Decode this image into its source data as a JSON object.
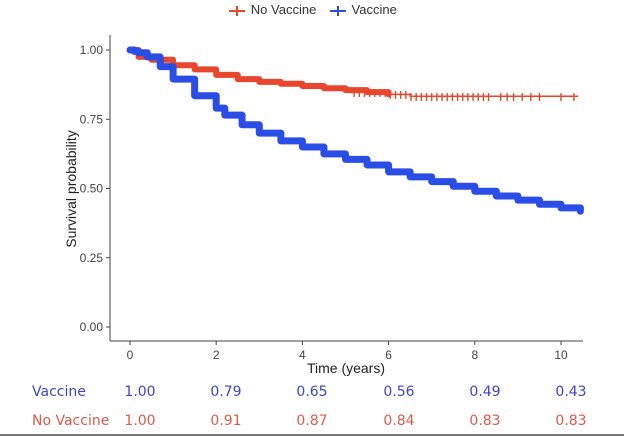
{
  "chart_data": {
    "type": "line",
    "title": "",
    "xlabel": "Time (years)",
    "ylabel": "Survival probability",
    "xlim": [
      -0.5,
      10.5
    ],
    "ylim": [
      -0.04,
      1.04
    ],
    "xticks": [
      0,
      2,
      4,
      6,
      8,
      10
    ],
    "yticks": [
      0.0,
      0.25,
      0.5,
      0.75,
      1.0
    ],
    "xtick_labels": [
      "0",
      "2",
      "4",
      "6",
      "8",
      "10"
    ],
    "ytick_labels": [
      "0.00",
      "0.25",
      "0.50",
      "0.75",
      "1.00"
    ],
    "grid": false,
    "legend": {
      "position": "top",
      "entries": [
        "No Vaccine",
        "Vaccine"
      ]
    },
    "series": [
      {
        "name": "No Vaccine",
        "color": "#e8462d",
        "x": [
          0,
          0.2,
          0.5,
          1.0,
          1.5,
          2.0,
          2.5,
          3.0,
          3.5,
          4.0,
          4.5,
          5.0,
          5.5,
          6.0,
          6.5,
          7.0,
          8.0,
          9.0,
          10.0,
          10.4
        ],
        "y": [
          1.0,
          0.975,
          0.965,
          0.945,
          0.93,
          0.91,
          0.895,
          0.885,
          0.878,
          0.87,
          0.862,
          0.855,
          0.848,
          0.84,
          0.833,
          0.83,
          0.83,
          0.83,
          0.83,
          0.83
        ],
        "censor_marks": true
      },
      {
        "name": "Vaccine",
        "color": "#2a4de6",
        "x": [
          0,
          0.1,
          0.2,
          0.4,
          0.7,
          1.0,
          1.5,
          2.0,
          2.2,
          2.6,
          3.0,
          3.5,
          4.0,
          4.5,
          5.0,
          5.5,
          6.0,
          6.5,
          7.0,
          7.5,
          8.0,
          8.5,
          9.0,
          9.5,
          10.0,
          10.45
        ],
        "y": [
          1.0,
          0.995,
          0.99,
          0.975,
          0.94,
          0.895,
          0.835,
          0.79,
          0.765,
          0.73,
          0.7,
          0.672,
          0.65,
          0.625,
          0.605,
          0.585,
          0.56,
          0.542,
          0.525,
          0.508,
          0.49,
          0.473,
          0.458,
          0.443,
          0.43,
          0.418
        ]
      }
    ],
    "risk_table": {
      "times": [
        0,
        2,
        4,
        6,
        8,
        10
      ],
      "rows": [
        {
          "label": "Vaccine",
          "color": "#3c46c8",
          "values": [
            "1.00",
            "0.79",
            "0.65",
            "0.56",
            "0.49",
            "0.43"
          ]
        },
        {
          "label": "No Vaccine",
          "color": "#e05a4a",
          "values": [
            "1.00",
            "0.91",
            "0.87",
            "0.84",
            "0.83",
            "0.83"
          ]
        }
      ]
    }
  }
}
